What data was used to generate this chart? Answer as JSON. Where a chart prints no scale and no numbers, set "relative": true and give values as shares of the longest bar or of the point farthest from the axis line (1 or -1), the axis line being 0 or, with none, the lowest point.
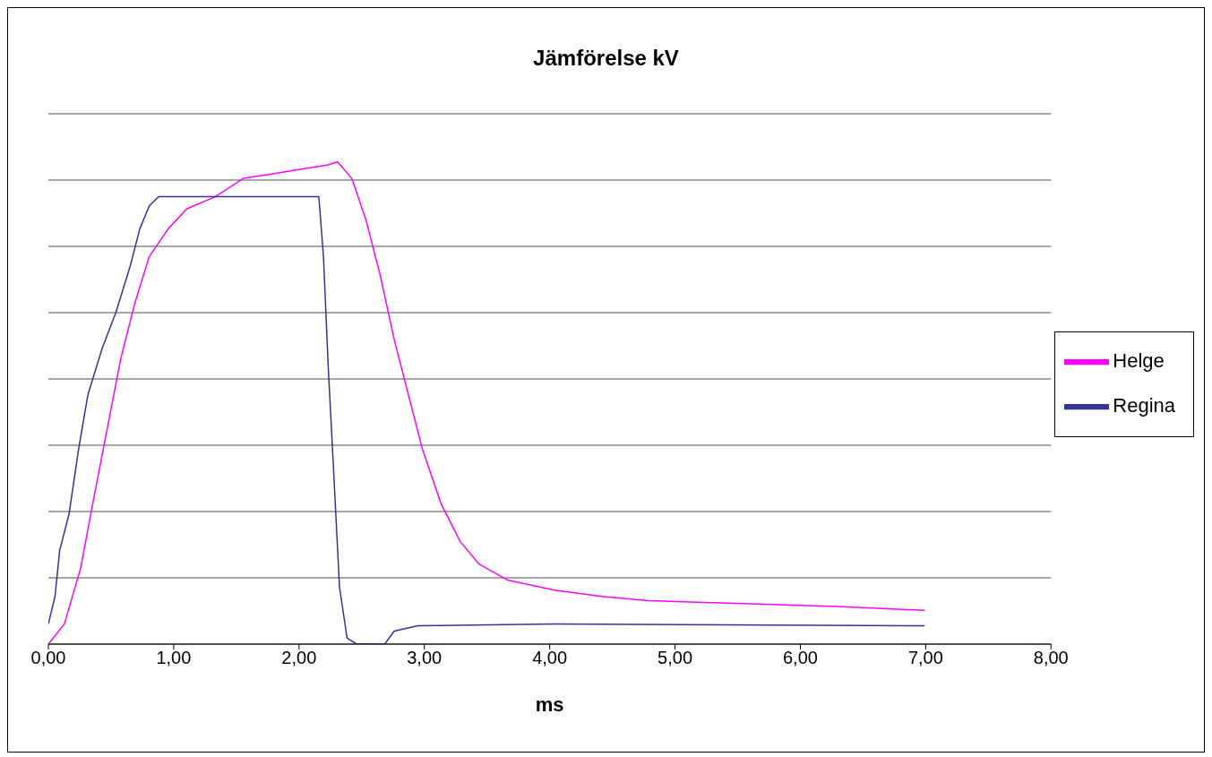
{
  "chart_data": {
    "type": "line",
    "title": "Jämförelse kV",
    "xlabel": "ms",
    "relative": true,
    "xlim": [
      0,
      8
    ],
    "xticks": [
      {
        "value": 0,
        "label": "0,00"
      },
      {
        "value": 1,
        "label": "1,00"
      },
      {
        "value": 2,
        "label": "2,00"
      },
      {
        "value": 3,
        "label": "3,00"
      },
      {
        "value": 4,
        "label": "4,00"
      },
      {
        "value": 5,
        "label": "5,00"
      },
      {
        "value": 6,
        "label": "6,00"
      },
      {
        "value": 7,
        "label": "7,00"
      },
      {
        "value": 8,
        "label": "8,00"
      }
    ],
    "grid": "y",
    "legend": "right",
    "marker": "none",
    "line_style": "solid",
    "series": [
      {
        "name": "Helge",
        "color": "#ff00ff",
        "x": [
          0,
          0.128,
          0.256,
          0.353,
          0.466,
          0.579,
          0.692,
          0.805,
          0.955,
          1.105,
          1.331,
          1.556,
          1.782,
          2.008,
          2.233,
          2.308,
          2.421,
          2.534,
          2.647,
          2.759,
          2.872,
          2.985,
          3.135,
          3.286,
          3.436,
          3.662,
          4.038,
          4.414,
          4.789,
          5.541,
          6.293,
          6.992
        ],
        "values": [
          0,
          0.042,
          0.156,
          0.29,
          0.442,
          0.594,
          0.709,
          0.804,
          0.861,
          0.903,
          0.928,
          0.966,
          0.975,
          0.985,
          0.994,
          1,
          0.966,
          0.88,
          0.766,
          0.632,
          0.518,
          0.404,
          0.29,
          0.213,
          0.166,
          0.133,
          0.112,
          0.099,
          0.09,
          0.084,
          0.078,
          0.07
        ]
      },
      {
        "name": "Regina",
        "color": "#333399",
        "x": [
          0,
          0.053,
          0.09,
          0.165,
          0.241,
          0.316,
          0.429,
          0.541,
          0.654,
          0.729,
          0.805,
          0.88,
          1.406,
          2.158,
          2.195,
          2.233,
          2.271,
          2.323,
          2.383,
          2.459,
          2.684,
          2.759,
          2.947,
          4.038,
          6.992
        ],
        "values": [
          0.042,
          0.099,
          0.194,
          0.27,
          0.404,
          0.518,
          0.613,
          0.69,
          0.785,
          0.861,
          0.909,
          0.928,
          0.928,
          0.928,
          0.804,
          0.575,
          0.385,
          0.118,
          0.013,
          0,
          0,
          0.027,
          0.038,
          0.042,
          0.038
        ]
      }
    ]
  }
}
